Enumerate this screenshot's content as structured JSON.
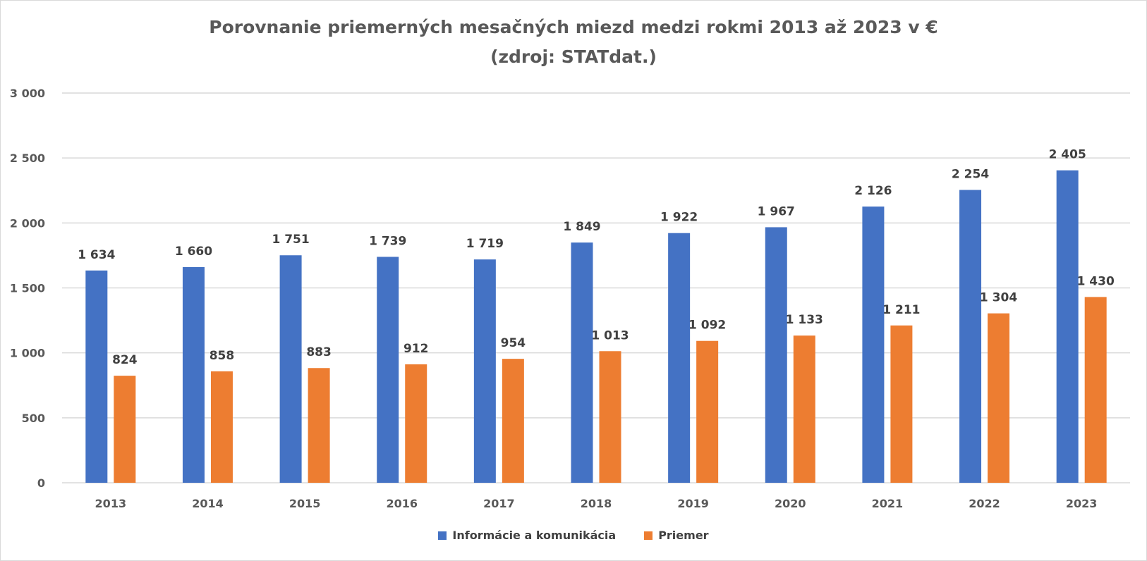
{
  "chart_data": {
    "type": "bar",
    "title": [
      "Porovnanie priemerných mesačných miezd medzi rokmi 2013 až 2023 v €",
      "(zdroj: STATdat.)"
    ],
    "categories": [
      "2013",
      "2014",
      "2015",
      "2016",
      "2017",
      "2018",
      "2019",
      "2020",
      "2021",
      "2022",
      "2023"
    ],
    "series": [
      {
        "name": "Informácie a komunikácia",
        "color": "#4472C4",
        "values": [
          1634,
          1660,
          1751,
          1739,
          1719,
          1849,
          1922,
          1967,
          2126,
          2254,
          2405
        ]
      },
      {
        "name": "Priemer",
        "color": "#ED7D31",
        "values": [
          824,
          858,
          883,
          912,
          954,
          1013,
          1092,
          1133,
          1211,
          1304,
          1430
        ]
      }
    ],
    "ylim": [
      0,
      3000
    ],
    "yticks": [
      0,
      500,
      1000,
      1500,
      2000,
      2500,
      3000
    ],
    "ytick_labels": [
      "0",
      "500",
      "1 000",
      "1 500",
      "2 000",
      "2 500",
      "3 000"
    ],
    "grid": true,
    "data_labels": true,
    "legend": "bottom"
  }
}
